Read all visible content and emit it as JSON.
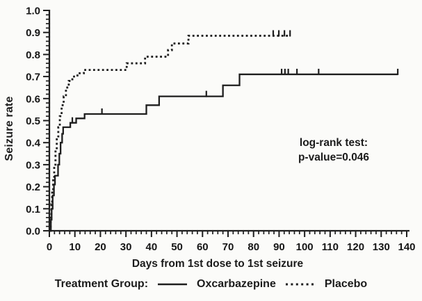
{
  "figure": {
    "y_axis_label": "Seizure rate",
    "x_axis_label": "Days from 1st dose to 1st seizure",
    "annotation_line1": "log-rank test:",
    "annotation_line2": "p-value=0.046",
    "legend": {
      "title": "Treatment Group:",
      "items": [
        {
          "label": "Oxcarbazepine",
          "style": "solid"
        },
        {
          "label": "Placebo",
          "style": "dotted"
        }
      ]
    }
  },
  "chart_data": {
    "type": "line",
    "subtype": "kaplan-meier-step",
    "title": "",
    "xlabel": "Days from 1st dose to 1st seizure",
    "ylabel": "Seizure rate",
    "xlim": [
      0,
      140
    ],
    "ylim": [
      0.0,
      1.0
    ],
    "grid": false,
    "legend_position": "bottom",
    "annotation": "log-rank test: p-value=0.046",
    "x_major_ticks": [
      0,
      10,
      20,
      30,
      40,
      50,
      60,
      70,
      80,
      90,
      100,
      110,
      120,
      130,
      140
    ],
    "x_minor_step": 2,
    "y_major_tick_labels": [
      "0.0",
      "0.1",
      "0.2",
      "0.3",
      "0.4",
      "0.5",
      "0.6",
      "0.7",
      "0.8",
      "0.9",
      "1.0"
    ],
    "y_minor_step": 0.02,
    "line_color": "#1e1e1e",
    "series": [
      {
        "name": "Oxcarbazepine",
        "line": "solid",
        "steps": [
          [
            0,
            0
          ],
          [
            0.6,
            0.05
          ],
          [
            0.9,
            0.1
          ],
          [
            1.3,
            0.16
          ],
          [
            1.8,
            0.21
          ],
          [
            2.2,
            0.25
          ],
          [
            3.4,
            0.3
          ],
          [
            3.9,
            0.35
          ],
          [
            4.4,
            0.4
          ],
          [
            5.0,
            0.44
          ],
          [
            5.4,
            0.47
          ],
          [
            8.2,
            0.49
          ],
          [
            10.5,
            0.51
          ],
          [
            13.8,
            0.53
          ],
          [
            38,
            0.57
          ],
          [
            43,
            0.61
          ],
          [
            68,
            0.66
          ],
          [
            74.5,
            0.71
          ]
        ],
        "end_day": 136.5,
        "censor_marks": [
          [
            9,
            0.49
          ],
          [
            20.6,
            0.53
          ],
          [
            61.5,
            0.61
          ],
          [
            91,
            0.71
          ],
          [
            92.3,
            0.71
          ],
          [
            93.6,
            0.71
          ],
          [
            97,
            0.71
          ],
          [
            105.5,
            0.71
          ],
          [
            136.5,
            0.71
          ]
        ]
      },
      {
        "name": "Placebo",
        "line": "dotted",
        "steps": [
          [
            0,
            0
          ],
          [
            0.5,
            0.06
          ],
          [
            0.8,
            0.12
          ],
          [
            1.1,
            0.18
          ],
          [
            1.5,
            0.24
          ],
          [
            1.9,
            0.3
          ],
          [
            2.4,
            0.36
          ],
          [
            2.9,
            0.42
          ],
          [
            3.5,
            0.47
          ],
          [
            4.1,
            0.52
          ],
          [
            4.8,
            0.57
          ],
          [
            5.6,
            0.61
          ],
          [
            6.5,
            0.65
          ],
          [
            7.6,
            0.68
          ],
          [
            9,
            0.7
          ],
          [
            11,
            0.715
          ],
          [
            13.5,
            0.73
          ],
          [
            30.3,
            0.76
          ],
          [
            37.5,
            0.79
          ],
          [
            46.5,
            0.82
          ],
          [
            48,
            0.85
          ],
          [
            54.5,
            0.885
          ]
        ],
        "end_day": 94.5,
        "censor_marks": [
          [
            87.7,
            0.885
          ],
          [
            89.9,
            0.885
          ],
          [
            92.1,
            0.885
          ],
          [
            94.3,
            0.885
          ]
        ]
      }
    ]
  }
}
